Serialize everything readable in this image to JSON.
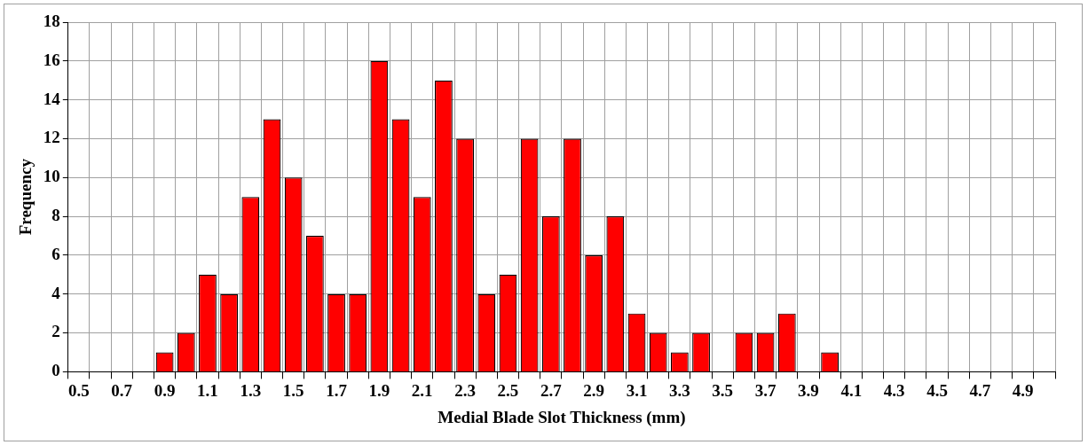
{
  "chart_data": {
    "type": "bar",
    "xlabel": "Medial Blade Slot Thickness (mm)",
    "ylabel": "Frequency",
    "categories": [
      "0.5",
      null,
      "0.7",
      null,
      "0.9",
      null,
      "1.1",
      null,
      "1.3",
      null,
      "1.5",
      null,
      "1.7",
      null,
      "1.9",
      null,
      "2.1",
      null,
      "2.3",
      null,
      "2.5",
      null,
      "2.7",
      null,
      "2.9",
      null,
      "3.1",
      null,
      "3.3",
      null,
      "3.5",
      null,
      "3.7",
      null,
      "3.9",
      null,
      "4.1",
      null,
      "4.3",
      null,
      "4.5",
      null,
      "4.7",
      null,
      "4.9",
      null
    ],
    "values": [
      0,
      0,
      0,
      0,
      1,
      2,
      5,
      4,
      9,
      13,
      10,
      7,
      4,
      4,
      16,
      13,
      9,
      15,
      12,
      4,
      5,
      12,
      8,
      12,
      6,
      8,
      3,
      2,
      1,
      2,
      0,
      2,
      2,
      3,
      0,
      1,
      0,
      0,
      0,
      0,
      0,
      0,
      0,
      0,
      0,
      0
    ],
    "color": "#ff0000",
    "ylim": [
      0,
      18
    ],
    "yticks": [
      0,
      2,
      4,
      6,
      8,
      10,
      12,
      14,
      16,
      18
    ],
    "grid": true,
    "legend": false
  }
}
